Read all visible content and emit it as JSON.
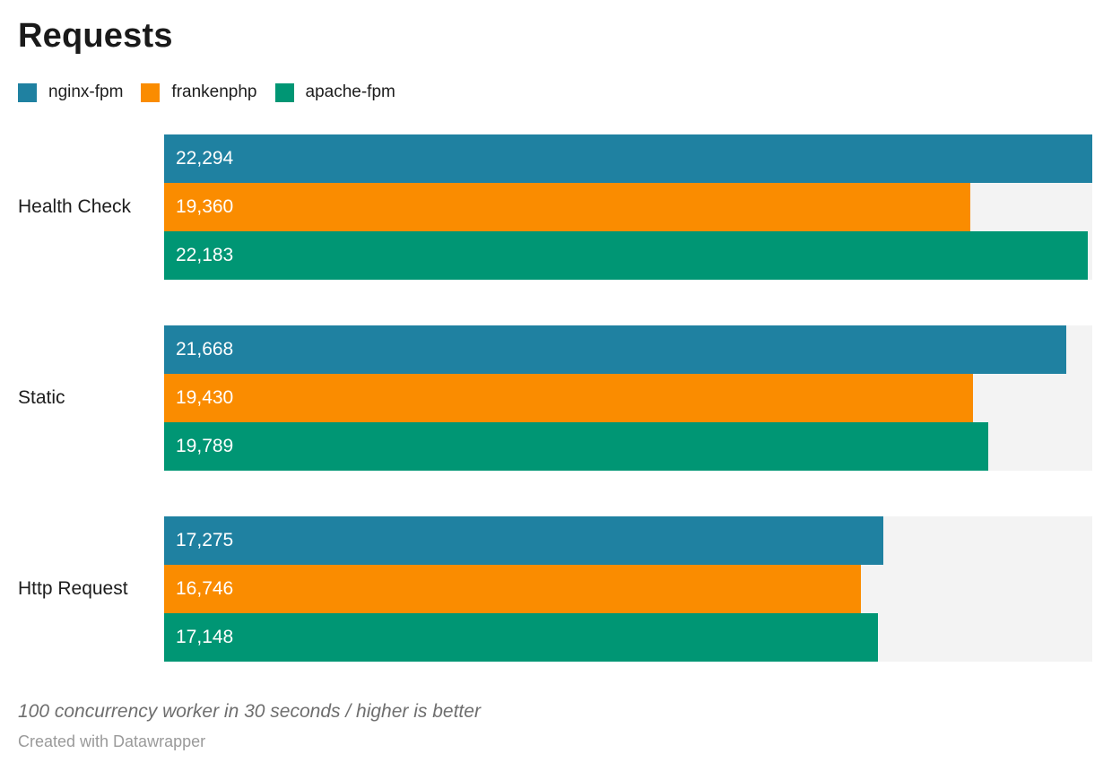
{
  "title": "Requests",
  "chart_data": {
    "type": "bar",
    "orientation": "horizontal",
    "title": "Requests",
    "categories": [
      "Health Check",
      "Static",
      "Http Request"
    ],
    "series": [
      {
        "name": "nginx-fpm",
        "color": "#1f81a1",
        "values": [
          22294,
          21668,
          17275
        ],
        "labels": [
          "22,294",
          "21,668",
          "17,275"
        ]
      },
      {
        "name": "frankenphp",
        "color": "#fa8c00",
        "values": [
          19360,
          19430,
          16746
        ],
        "labels": [
          "19,360",
          "19,430",
          "16,746"
        ]
      },
      {
        "name": "apache-fpm",
        "color": "#009674",
        "values": [
          22183,
          19789,
          17148
        ],
        "labels": [
          "22,183",
          "19,789",
          "17,148"
        ]
      }
    ],
    "xlim": [
      0,
      22294
    ],
    "grid": false,
    "legend_position": "top",
    "track_color": "#f3f3f3",
    "value_label_position": "inside-left"
  },
  "footer": {
    "note": "100 concurrency worker in 30 seconds / higher is better",
    "credit": "Created with Datawrapper"
  }
}
